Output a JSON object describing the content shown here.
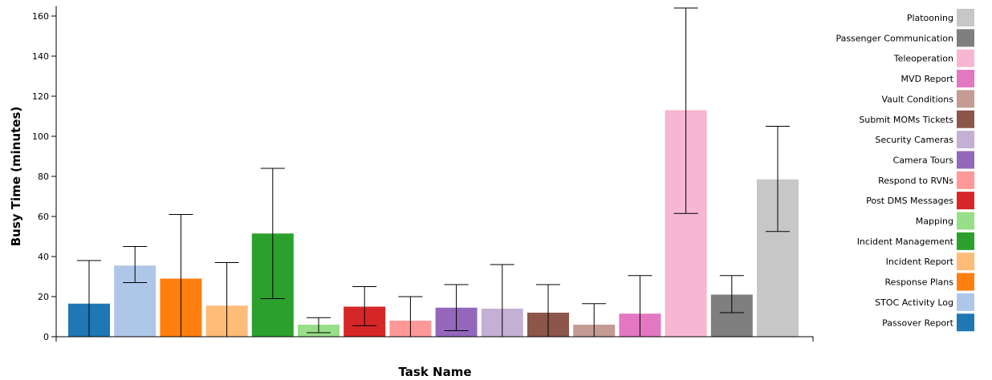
{
  "chart_data": {
    "type": "bar",
    "title": "",
    "xlabel": "Task Name",
    "ylabel": "Busy Time (minutes)",
    "ylim": [
      0,
      165
    ],
    "yticks": [
      0,
      20,
      40,
      60,
      80,
      100,
      120,
      140,
      160
    ],
    "grid": false,
    "legend_position": "right",
    "categories": [
      "Passover Report",
      "STOC Activity Log",
      "Response Plans",
      "Incident Report",
      "Incident Management",
      "Mapping",
      "Post DMS Messages",
      "Respond to RVNs",
      "Camera Tours",
      "Security Cameras",
      "Submit MOMs Tickets",
      "Vault Conditions",
      "MVD Report",
      "Teleoperation",
      "Passenger Communication",
      "Platooning"
    ],
    "values": [
      16.5,
      35.5,
      29,
      15.5,
      51.5,
      6,
      15,
      8,
      14.5,
      14,
      12,
      6,
      11.5,
      113,
      21,
      78.5
    ],
    "error_low": [
      0,
      27,
      0,
      0,
      19,
      2,
      5.5,
      0,
      3,
      0,
      0,
      0,
      0,
      61.5,
      12,
      52.5
    ],
    "error_high": [
      38,
      45,
      61,
      37,
      84,
      9.5,
      25,
      20,
      26,
      36,
      26,
      16.5,
      30.5,
      164,
      30.5,
      105
    ],
    "colors": [
      "#1f77b4",
      "#aec7e8",
      "#ff7f0e",
      "#ffbb78",
      "#2ca02c",
      "#98df8a",
      "#d62728",
      "#ff9896",
      "#9467bd",
      "#c5b0d5",
      "#8c564b",
      "#c49c94",
      "#e377c2",
      "#f7b6d2",
      "#7f7f7f",
      "#c7c7c7"
    ],
    "legend": [
      "Platooning",
      "Passenger Communication",
      "Teleoperation",
      "MVD Report",
      "Vault Conditions",
      "Submit MOMs Tickets",
      "Security Cameras",
      "Camera Tours",
      "Respond to RVNs",
      "Post DMS Messages",
      "Mapping",
      "Incident Management",
      "Incident Report",
      "Response Plans",
      "STOC Activity Log",
      "Passover Report"
    ]
  }
}
